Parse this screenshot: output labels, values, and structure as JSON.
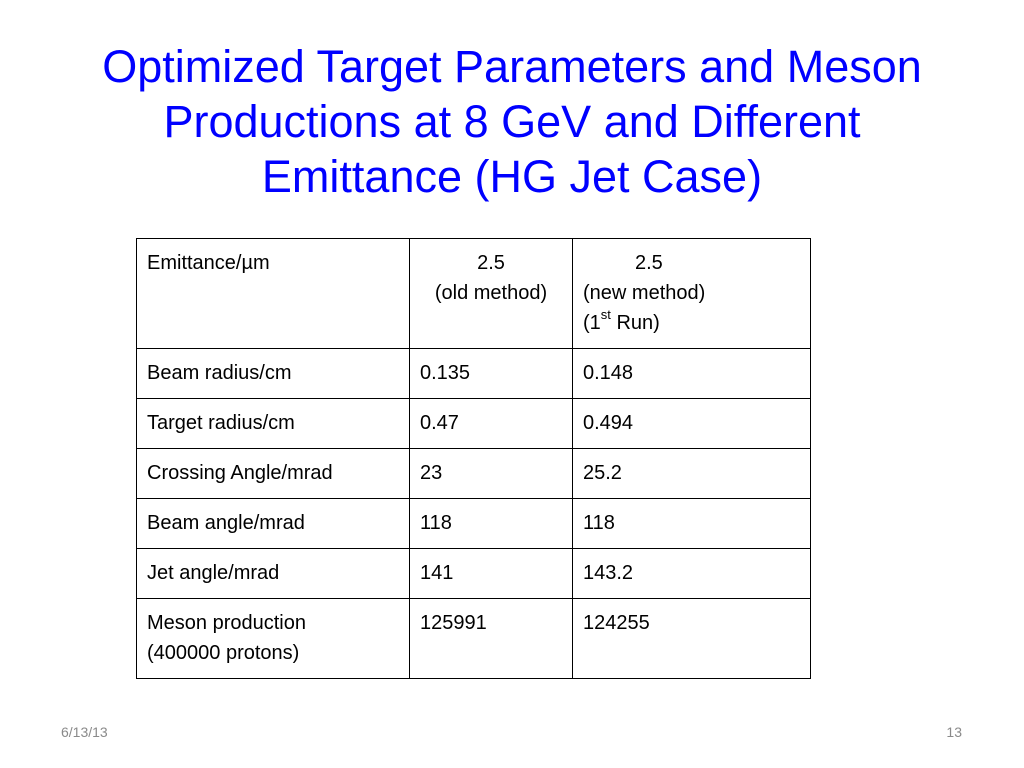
{
  "slide": {
    "title_lines": [
      "Optimized Target Parameters and Meson",
      "Productions at 8 GeV and Different",
      "Emittance (HG Jet Case)"
    ]
  },
  "table": {
    "header": {
      "label": "Emittance/µm",
      "col2_value": "2.5",
      "col2_note": "(old method)",
      "col3_value": "2.5",
      "col3_note": "(new method)",
      "col3_run_prefix": "(1",
      "col3_run_sup": "st",
      "col3_run_suffix": " Run)"
    },
    "rows": [
      {
        "label": "Beam radius/cm",
        "old": "0.135",
        "new": "0.148"
      },
      {
        "label": "Target radius/cm",
        "old": "0.47",
        "new": "0.494"
      },
      {
        "label": "Crossing Angle/mrad",
        "old": "23",
        "new": "25.2"
      },
      {
        "label": "Beam angle/mrad",
        "old": "118",
        "new": "118"
      },
      {
        "label": "Jet angle/mrad",
        "old": "141",
        "new": "143.2"
      }
    ],
    "last_row": {
      "label_line1": "Meson production",
      "label_line2": "(400000 protons)",
      "old": "125991",
      "new": "124255"
    }
  },
  "footer": {
    "date": "6/13/13",
    "page": "13"
  }
}
